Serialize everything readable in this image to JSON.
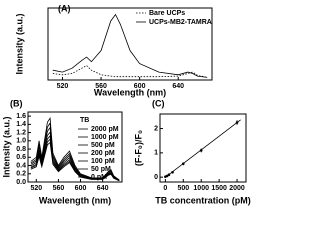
{
  "chart_data": [
    {
      "type": "line",
      "label": "(A)",
      "xlabel": "Wavelength (nm)",
      "ylabel": "Intensity (a.u.)",
      "x": [
        510,
        520,
        530,
        540,
        545,
        550,
        560,
        570,
        575,
        580,
        590,
        600,
        620,
        640,
        650,
        655,
        660,
        670
      ],
      "xlim": [
        505,
        675
      ],
      "xticks": [
        520,
        560,
        600,
        640
      ],
      "ylim": [
        0,
        1.1
      ],
      "series": [
        {
          "name": "Bare UCPs",
          "color": "#000000",
          "line_style": "dotted",
          "values": [
            0.1,
            0.08,
            0.1,
            0.18,
            0.22,
            0.15,
            0.08,
            0.06,
            0.05,
            0.05,
            0.05,
            0.05,
            0.05,
            0.06,
            0.1,
            0.12,
            0.07,
            0.04
          ]
        },
        {
          "name": "UCPs-MB2-TAMRA",
          "color": "#000000",
          "line_style": "solid",
          "values": [
            0.15,
            0.12,
            0.18,
            0.3,
            0.35,
            0.28,
            0.45,
            0.9,
            1.0,
            0.85,
            0.45,
            0.25,
            0.12,
            0.08,
            0.12,
            0.1,
            0.06,
            0.04
          ]
        }
      ]
    },
    {
      "type": "line",
      "label": "(B)",
      "xlabel": "Wavelength (nm)",
      "ylabel": "Intensity (a.u.)",
      "legend_title": "TB",
      "x": [
        510,
        520,
        525,
        530,
        540,
        545,
        550,
        560,
        570,
        580,
        590,
        600,
        620,
        640,
        650,
        655,
        660,
        670
      ],
      "xlim": [
        505,
        675
      ],
      "xticks": [
        520,
        560,
        600,
        640
      ],
      "ylim": [
        0,
        1.7
      ],
      "yticks": [
        {
          "value": 0,
          "label": "0.0"
        },
        {
          "value": 0.2,
          "label": "0.2"
        },
        {
          "value": 0.4,
          "label": "0.4"
        },
        {
          "value": 0.6,
          "label": "0.6"
        },
        {
          "value": 0.8,
          "label": "0.8"
        },
        {
          "value": 1,
          "label": "1.0"
        },
        {
          "value": 1.2,
          "label": "1.2"
        },
        {
          "value": 1.4,
          "label": "1.4"
        },
        {
          "value": 1.6,
          "label": "1.6"
        }
      ],
      "series": [
        {
          "name": "2000 pM",
          "color": "#000000",
          "values": [
            0.5,
            0.6,
            1.0,
            0.6,
            1.45,
            1.55,
            0.7,
            0.4,
            0.6,
            0.75,
            0.4,
            0.2,
            0.1,
            0.1,
            0.25,
            0.3,
            0.15,
            0.05
          ]
        },
        {
          "name": "1000 pM",
          "color": "#000000",
          "values": [
            0.46,
            0.55,
            0.92,
            0.55,
            1.33,
            1.43,
            0.64,
            0.37,
            0.55,
            0.69,
            0.37,
            0.18,
            0.09,
            0.09,
            0.23,
            0.28,
            0.14,
            0.05
          ]
        },
        {
          "name": "500 pM",
          "color": "#000000",
          "values": [
            0.43,
            0.51,
            0.85,
            0.51,
            1.23,
            1.32,
            0.6,
            0.34,
            0.51,
            0.64,
            0.34,
            0.17,
            0.09,
            0.09,
            0.21,
            0.26,
            0.13,
            0.04
          ]
        },
        {
          "name": "200 pM",
          "color": "#000000",
          "values": [
            0.39,
            0.47,
            0.78,
            0.47,
            1.13,
            1.21,
            0.55,
            0.31,
            0.47,
            0.59,
            0.31,
            0.16,
            0.08,
            0.08,
            0.2,
            0.23,
            0.12,
            0.04
          ]
        },
        {
          "name": "100 pM",
          "color": "#000000",
          "values": [
            0.36,
            0.43,
            0.72,
            0.43,
            1.04,
            1.12,
            0.5,
            0.29,
            0.43,
            0.54,
            0.29,
            0.14,
            0.07,
            0.07,
            0.18,
            0.22,
            0.11,
            0.04
          ]
        },
        {
          "name": "50 pM",
          "color": "#000000",
          "values": [
            0.34,
            0.4,
            0.67,
            0.4,
            0.97,
            1.04,
            0.47,
            0.27,
            0.4,
            0.5,
            0.27,
            0.13,
            0.07,
            0.07,
            0.17,
            0.2,
            0.1,
            0.03
          ]
        },
        {
          "name": "0 pM",
          "color": "#000000",
          "values": [
            0.31,
            0.37,
            0.62,
            0.37,
            0.9,
            0.96,
            0.43,
            0.25,
            0.37,
            0.47,
            0.25,
            0.12,
            0.06,
            0.06,
            0.16,
            0.19,
            0.09,
            0.03
          ]
        }
      ]
    },
    {
      "type": "scatter",
      "label": "(C)",
      "xlabel": "TB concentration (pM)",
      "ylabel": "(F-F₀)/F₀",
      "x": [
        0,
        50,
        100,
        200,
        500,
        1000,
        2000
      ],
      "values": [
        0.02,
        0.05,
        0.1,
        0.2,
        0.55,
        1.1,
        2.25
      ],
      "errors": [
        0.03,
        0.03,
        0.04,
        0.04,
        0.06,
        0.08,
        0.1
      ],
      "color": "#000000",
      "trend": {
        "x": [
          0,
          2100
        ],
        "y": [
          0,
          2.36
        ]
      },
      "xlim": [
        -150,
        2250
      ],
      "xticks": [
        0,
        500,
        1000,
        1500,
        2000
      ],
      "ylim": [
        -0.2,
        2.6
      ],
      "yticks": [
        0,
        1,
        2
      ]
    }
  ]
}
